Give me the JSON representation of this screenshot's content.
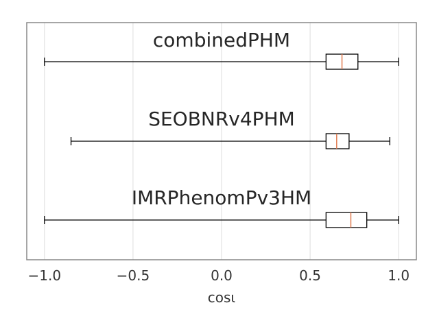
{
  "chart_data": {
    "type": "boxplot",
    "orientation": "horizontal",
    "xlabel": "cosι",
    "xlim": [
      -1.1,
      1.1
    ],
    "xticks": [
      -1.0,
      -0.5,
      0.0,
      0.5,
      1.0
    ],
    "xtick_labels": [
      "−1.0",
      "−0.5",
      "0.0",
      "0.5",
      "1.0"
    ],
    "grid": true,
    "series": [
      {
        "name": "combinedPHM",
        "whisker_low": -1.0,
        "q1": 0.59,
        "median": 0.68,
        "q3": 0.77,
        "whisker_high": 1.0
      },
      {
        "name": "SEOBNRv4PHM",
        "whisker_low": -0.85,
        "q1": 0.59,
        "median": 0.65,
        "q3": 0.72,
        "whisker_high": 0.95
      },
      {
        "name": "IMRPhenomPv3HM",
        "whisker_low": -1.0,
        "q1": 0.59,
        "median": 0.73,
        "q3": 0.82,
        "whisker_high": 1.0
      }
    ]
  }
}
